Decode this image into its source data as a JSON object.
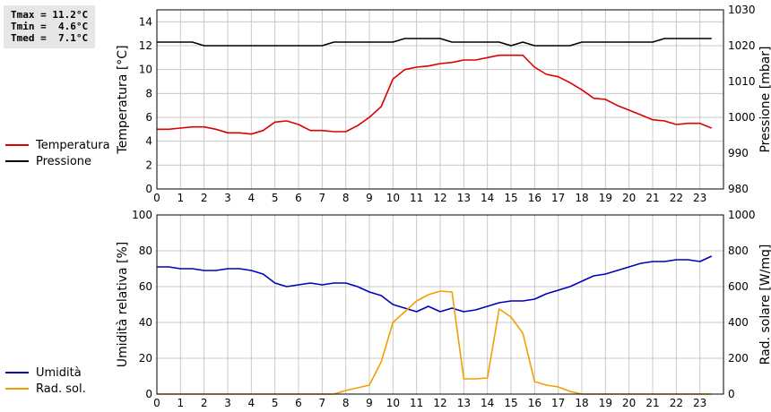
{
  "stats": {
    "tmax": "Tmax = 11.2°C",
    "tmin": "Tmin =  4.6°C",
    "tmed": "Tmed =  7.1°C"
  },
  "colors": {
    "temperature": "#dd0000",
    "pressure": "#000000",
    "humidity": "#0000bb",
    "radiation": "#f0a000",
    "grid": "#c8c8c8"
  },
  "legend_top": [
    {
      "name": "Temperatura",
      "color": "#dd0000"
    },
    {
      "name": "Pressione",
      "color": "#000000"
    }
  ],
  "legend_bottom": [
    {
      "name": "Umidità",
      "color": "#0000bb"
    },
    {
      "name": "Rad. sol.",
      "color": "#f0a000"
    }
  ],
  "chart_data": [
    {
      "type": "line",
      "xlabel": "",
      "xlim": [
        0,
        24
      ],
      "xticks": [
        "0",
        "1",
        "2",
        "3",
        "4",
        "5",
        "6",
        "7",
        "8",
        "9",
        "10",
        "11",
        "12",
        "13",
        "14",
        "15",
        "16",
        "17",
        "18",
        "19",
        "20",
        "21",
        "22",
        "23"
      ],
      "ylabel_left": "Temperatura [°C]",
      "ylim_left": [
        0,
        15
      ],
      "yticks_left": [
        "0",
        "2",
        "4",
        "6",
        "8",
        "10",
        "12",
        "14"
      ],
      "ylabel_right": "Pressione [mbar]",
      "ylim_right": [
        980,
        1030
      ],
      "yticks_right": [
        "980",
        "990",
        "1000",
        "1010",
        "1020",
        "1030"
      ],
      "grid": true,
      "series": [
        {
          "name": "Temperatura",
          "axis": "left",
          "x": [
            0,
            0.5,
            1,
            1.5,
            2,
            2.5,
            3,
            3.5,
            4,
            4.5,
            5,
            5.5,
            6,
            6.5,
            7,
            7.5,
            8,
            8.5,
            9,
            9.5,
            10,
            10.5,
            11,
            11.5,
            12,
            12.5,
            13,
            13.5,
            14,
            14.5,
            15,
            15.5,
            16,
            16.5,
            17,
            17.5,
            18,
            18.5,
            19,
            19.5,
            20,
            20.5,
            21,
            21.5,
            22,
            22.5,
            23,
            23.5
          ],
          "y": [
            5.0,
            5.0,
            5.1,
            5.2,
            5.2,
            5.0,
            4.7,
            4.7,
            4.6,
            4.9,
            5.6,
            5.7,
            5.4,
            4.9,
            4.9,
            4.8,
            4.8,
            5.3,
            6.0,
            6.9,
            9.2,
            10.0,
            10.2,
            10.3,
            10.5,
            10.6,
            10.8,
            10.8,
            11.0,
            11.2,
            11.2,
            11.2,
            10.2,
            9.6,
            9.4,
            8.9,
            8.3,
            7.6,
            7.5,
            7.0,
            6.6,
            6.2,
            5.8,
            5.7,
            5.4,
            5.5,
            5.5,
            5.1
          ]
        },
        {
          "name": "Pressione",
          "axis": "right",
          "x": [
            0,
            0.5,
            1,
            1.5,
            2,
            2.5,
            3,
            3.5,
            4,
            4.5,
            5,
            5.5,
            6,
            6.5,
            7,
            7.5,
            8,
            8.5,
            9,
            9.5,
            10,
            10.5,
            11,
            11.5,
            12,
            12.5,
            13,
            13.5,
            14,
            14.5,
            15,
            15.5,
            16,
            16.5,
            17,
            17.5,
            18,
            18.5,
            19,
            19.5,
            20,
            20.5,
            21,
            21.5,
            22,
            22.5,
            23,
            23.5
          ],
          "y": [
            1021,
            1021,
            1021,
            1021,
            1020,
            1020,
            1020,
            1020,
            1020,
            1020,
            1020,
            1020,
            1020,
            1020,
            1020,
            1021,
            1021,
            1021,
            1021,
            1021,
            1021,
            1022,
            1022,
            1022,
            1022,
            1021,
            1021,
            1021,
            1021,
            1021,
            1020,
            1021,
            1020,
            1020,
            1020,
            1020,
            1021,
            1021,
            1021,
            1021,
            1021,
            1021,
            1021,
            1022,
            1022,
            1022,
            1022,
            1022
          ]
        }
      ]
    },
    {
      "type": "line",
      "xlabel": "",
      "xlim": [
        0,
        24
      ],
      "xticks": [
        "0",
        "1",
        "2",
        "3",
        "4",
        "5",
        "6",
        "7",
        "8",
        "9",
        "10",
        "11",
        "12",
        "13",
        "14",
        "15",
        "16",
        "17",
        "18",
        "19",
        "20",
        "21",
        "22",
        "23"
      ],
      "ylabel_left": "Umidità relativa [%]",
      "ylim_left": [
        0,
        100
      ],
      "yticks_left": [
        "0",
        "20",
        "40",
        "60",
        "80",
        "100"
      ],
      "ylabel_right": "Rad. solare [W/mq]",
      "ylim_right": [
        0,
        1000
      ],
      "yticks_right": [
        "0",
        "200",
        "400",
        "600",
        "800",
        "1000"
      ],
      "grid": true,
      "series": [
        {
          "name": "Umidità",
          "axis": "left",
          "x": [
            0,
            0.5,
            1,
            1.5,
            2,
            2.5,
            3,
            3.5,
            4,
            4.5,
            5,
            5.5,
            6,
            6.5,
            7,
            7.5,
            8,
            8.5,
            9,
            9.5,
            10,
            10.5,
            11,
            11.5,
            12,
            12.5,
            13,
            13.5,
            14,
            14.5,
            15,
            15.5,
            16,
            16.5,
            17,
            17.5,
            18,
            18.5,
            19,
            19.5,
            20,
            20.5,
            21,
            21.5,
            22,
            22.5,
            23,
            23.5
          ],
          "y": [
            71,
            71,
            70,
            70,
            69,
            69,
            70,
            70,
            69,
            67,
            62,
            60,
            61,
            62,
            61,
            62,
            62,
            60,
            57,
            55,
            50,
            48,
            46,
            49,
            46,
            48,
            46,
            47,
            49,
            51,
            52,
            52,
            53,
            56,
            58,
            60,
            63,
            66,
            67,
            69,
            71,
            73,
            74,
            74,
            75,
            75,
            74,
            77
          ]
        },
        {
          "name": "Rad. sol.",
          "axis": "right",
          "x": [
            0,
            0.5,
            1,
            1.5,
            2,
            2.5,
            3,
            3.5,
            4,
            4.5,
            5,
            5.5,
            6,
            6.5,
            7,
            7.5,
            8,
            8.5,
            9,
            9.5,
            10,
            10.5,
            11,
            11.5,
            12,
            12.5,
            13,
            13.5,
            14,
            14.5,
            15,
            15.5,
            16,
            16.5,
            17,
            17.5,
            18,
            18.5,
            19,
            19.5,
            20,
            20.5,
            21,
            21.5,
            22,
            22.5,
            23,
            23.5
          ],
          "y": [
            0,
            0,
            0,
            0,
            0,
            0,
            0,
            0,
            0,
            0,
            0,
            0,
            0,
            0,
            0,
            0,
            20,
            35,
            50,
            180,
            400,
            460,
            520,
            555,
            575,
            570,
            85,
            85,
            90,
            475,
            430,
            340,
            70,
            50,
            40,
            15,
            0,
            0,
            0,
            0,
            0,
            0,
            0,
            0,
            0,
            0,
            0,
            0
          ]
        }
      ]
    }
  ]
}
